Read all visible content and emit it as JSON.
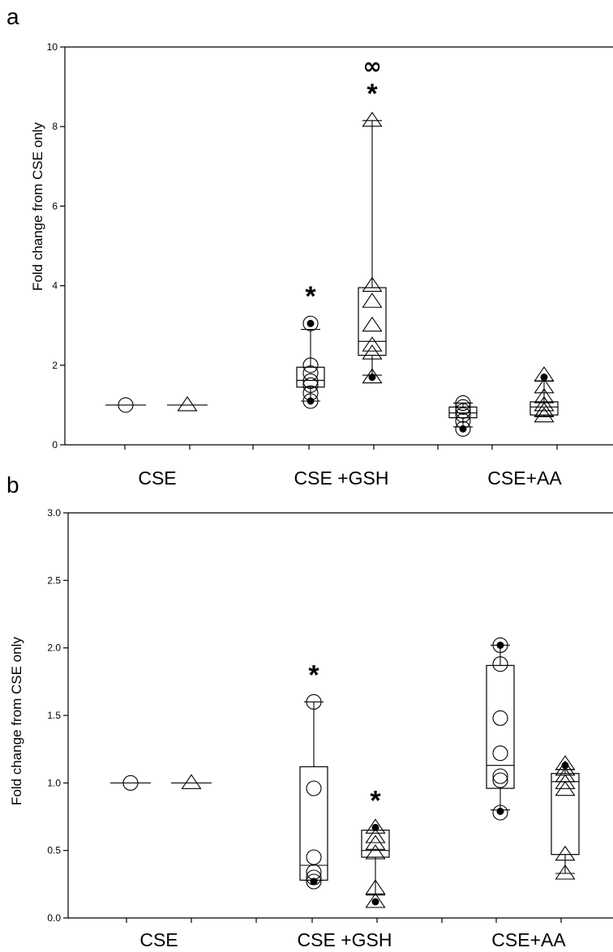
{
  "chart_data": [
    {
      "panel": "a",
      "type": "box",
      "ylabel": "Fold change from CSE only",
      "ylim": [
        0,
        10
      ],
      "yticks": [
        0,
        2,
        4,
        6,
        8,
        10
      ],
      "ytick_labels": [
        "0",
        "2",
        "4",
        "6",
        "8",
        "10"
      ],
      "categories": [
        "CSE",
        "CSE +GSH",
        "CSE+AA"
      ],
      "grid": false,
      "groups": [
        {
          "category": "CSE",
          "marker": "circle",
          "box": null,
          "points": [
            1.0
          ],
          "outliers": []
        },
        {
          "category": "CSE",
          "marker": "triangle",
          "box": null,
          "points": [
            1.0
          ],
          "outliers": []
        },
        {
          "category": "CSE +GSH",
          "marker": "circle",
          "box": {
            "whisker_low": 1.1,
            "q1": 1.45,
            "median": 1.62,
            "q3": 1.95,
            "whisker_high": 2.9
          },
          "points": [
            1.1,
            1.3,
            1.5,
            1.6,
            1.8,
            2.0,
            3.05
          ],
          "outliers": [
            1.1,
            3.05
          ],
          "annotation": "*"
        },
        {
          "category": "CSE +GSH",
          "marker": "triangle",
          "box": {
            "whisker_low": 1.75,
            "q1": 2.25,
            "median": 2.6,
            "q3": 3.95,
            "whisker_high": 8.15
          },
          "points": [
            1.7,
            2.3,
            2.5,
            3.0,
            3.6,
            4.0,
            8.15
          ],
          "outliers": [
            1.7
          ],
          "annotation": "*",
          "annotation_2": "∞"
        },
        {
          "category": "CSE+AA",
          "marker": "circle",
          "box": {
            "whisker_low": 0.45,
            "q1": 0.68,
            "median": 0.8,
            "q3": 0.95,
            "whisker_high": 1.05
          },
          "points": [
            0.4,
            0.6,
            0.75,
            0.85,
            0.95,
            1.05
          ],
          "outliers": [
            0.4
          ],
          "annotation": ""
        },
        {
          "category": "CSE+AA",
          "marker": "triangle",
          "box": {
            "whisker_low": 0.72,
            "q1": 0.75,
            "median": 0.95,
            "q3": 1.08,
            "whisker_high": 1.6
          },
          "points": [
            0.72,
            0.85,
            1.0,
            1.2,
            1.45,
            1.75
          ],
          "outliers": [
            1.7
          ],
          "annotation": ""
        }
      ]
    },
    {
      "panel": "b",
      "type": "box",
      "ylabel": "Fold change from CSE only",
      "ylim": [
        0,
        3
      ],
      "yticks": [
        0,
        0.5,
        1,
        1.5,
        2,
        2.5,
        3
      ],
      "ytick_labels": [
        "0.0",
        "0.5",
        "1.0",
        "1.5",
        "2.0",
        "2.5",
        "3.0"
      ],
      "categories": [
        "CSE",
        "CSE +GSH",
        "CSE+AA"
      ],
      "grid": false,
      "groups": [
        {
          "category": "CSE",
          "marker": "circle",
          "box": null,
          "points": [
            1.0
          ],
          "outliers": []
        },
        {
          "category": "CSE",
          "marker": "triangle",
          "box": null,
          "points": [
            1.0
          ],
          "outliers": []
        },
        {
          "category": "CSE +GSH",
          "marker": "circle",
          "box": {
            "whisker_low": 0.28,
            "q1": 0.28,
            "median": 0.39,
            "q3": 1.12,
            "whisker_high": 1.6
          },
          "points": [
            0.27,
            0.3,
            0.34,
            0.45,
            0.96,
            1.6
          ],
          "outliers": [
            0.27
          ],
          "annotation": "*"
        },
        {
          "category": "CSE +GSH",
          "marker": "triangle",
          "box": {
            "whisker_low": 0.17,
            "q1": 0.45,
            "median": 0.5,
            "q3": 0.65,
            "whisker_high": 0.65
          },
          "points": [
            0.12,
            0.22,
            0.48,
            0.55,
            0.6,
            0.67
          ],
          "outliers": [
            0.12,
            0.67
          ],
          "annotation": "*"
        },
        {
          "category": "CSE+AA",
          "marker": "circle",
          "box": {
            "whisker_low": 0.8,
            "q1": 0.96,
            "median": 1.13,
            "q3": 1.87,
            "whisker_high": 2.02
          },
          "points": [
            0.78,
            1.02,
            1.05,
            1.22,
            1.48,
            1.88,
            2.02
          ],
          "outliers": [
            0.79,
            2.02
          ],
          "annotation": ""
        },
        {
          "category": "CSE+AA",
          "marker": "triangle",
          "box": {
            "whisker_low": 0.33,
            "q1": 0.47,
            "median": 1.01,
            "q3": 1.07,
            "whisker_high": 1.1
          },
          "points": [
            0.33,
            0.47,
            0.95,
            1.0,
            1.05,
            1.1,
            1.14
          ],
          "outliers": [
            1.13
          ],
          "annotation": ""
        }
      ]
    }
  ]
}
